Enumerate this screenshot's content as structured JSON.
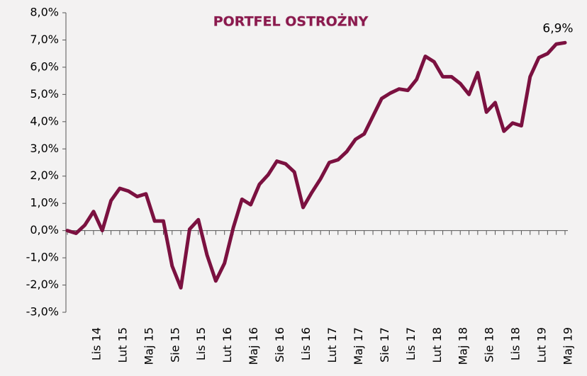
{
  "chart_data": {
    "type": "line",
    "title": "PORTFEL OSTROŻNY",
    "categories": [
      null,
      null,
      null,
      "Lis 14",
      null,
      null,
      "Lut 15",
      null,
      null,
      "Maj 15",
      null,
      null,
      "Sie 15",
      null,
      null,
      "Lis 15",
      null,
      null,
      "Lut 16",
      null,
      null,
      "Maj 16",
      null,
      null,
      "Sie 16",
      null,
      null,
      "Lis 16",
      null,
      null,
      "Lut 17",
      null,
      null,
      "Maj 17",
      null,
      null,
      "Sie 17",
      null,
      null,
      "Lis 17",
      null,
      null,
      "Lut 18",
      null,
      null,
      "Maj 18",
      null,
      null,
      "Sie 18",
      null,
      null,
      "Lis 18",
      null,
      null,
      "Lut 19",
      null,
      null,
      "Maj 19"
    ],
    "values": [
      0.0,
      -0.1,
      0.2,
      0.7,
      0.0,
      1.1,
      1.55,
      1.45,
      1.25,
      1.35,
      0.35,
      0.35,
      -1.3,
      -2.1,
      0.05,
      0.4,
      -0.9,
      -1.85,
      -1.2,
      0.1,
      1.15,
      0.95,
      1.7,
      2.05,
      2.55,
      2.45,
      2.15,
      0.85,
      1.4,
      1.9,
      2.5,
      2.6,
      2.9,
      3.35,
      3.55,
      4.2,
      4.85,
      5.05,
      5.2,
      5.15,
      5.55,
      6.4,
      6.2,
      5.65,
      5.65,
      5.4,
      5.0,
      5.8,
      4.35,
      4.7,
      3.65,
      3.95,
      3.85,
      5.65,
      6.35,
      6.5,
      6.85,
      6.9
    ],
    "value_labels": [
      null,
      null,
      null,
      null,
      null,
      null,
      null,
      null,
      null,
      null,
      null,
      null,
      null,
      null,
      null,
      null,
      null,
      null,
      null,
      null,
      null,
      null,
      null,
      null,
      null,
      null,
      null,
      null,
      null,
      null,
      null,
      null,
      null,
      null,
      null,
      null,
      null,
      null,
      null,
      null,
      null,
      null,
      null,
      null,
      null,
      null,
      null,
      null,
      null,
      null,
      null,
      null,
      null,
      null,
      null,
      null,
      null,
      "6,9%"
    ],
    "color": "#7b1140",
    "ylim": [
      -3,
      8
    ],
    "yticks": [
      {
        "value": -3,
        "label": "-3,0%"
      },
      {
        "value": -2,
        "label": "-2,0%"
      },
      {
        "value": -1,
        "label": "-1,0%"
      },
      {
        "value": 0,
        "label": "0,0%"
      },
      {
        "value": 1,
        "label": "1,0%"
      },
      {
        "value": 2,
        "label": "2,0%"
      },
      {
        "value": 3,
        "label": "3,0%"
      },
      {
        "value": 4,
        "label": "4,0%"
      },
      {
        "value": 5,
        "label": "5,0%"
      },
      {
        "value": 6,
        "label": "6,0%"
      },
      {
        "value": 7,
        "label": "7,0%"
      },
      {
        "value": 8,
        "label": "8,0%"
      }
    ]
  }
}
